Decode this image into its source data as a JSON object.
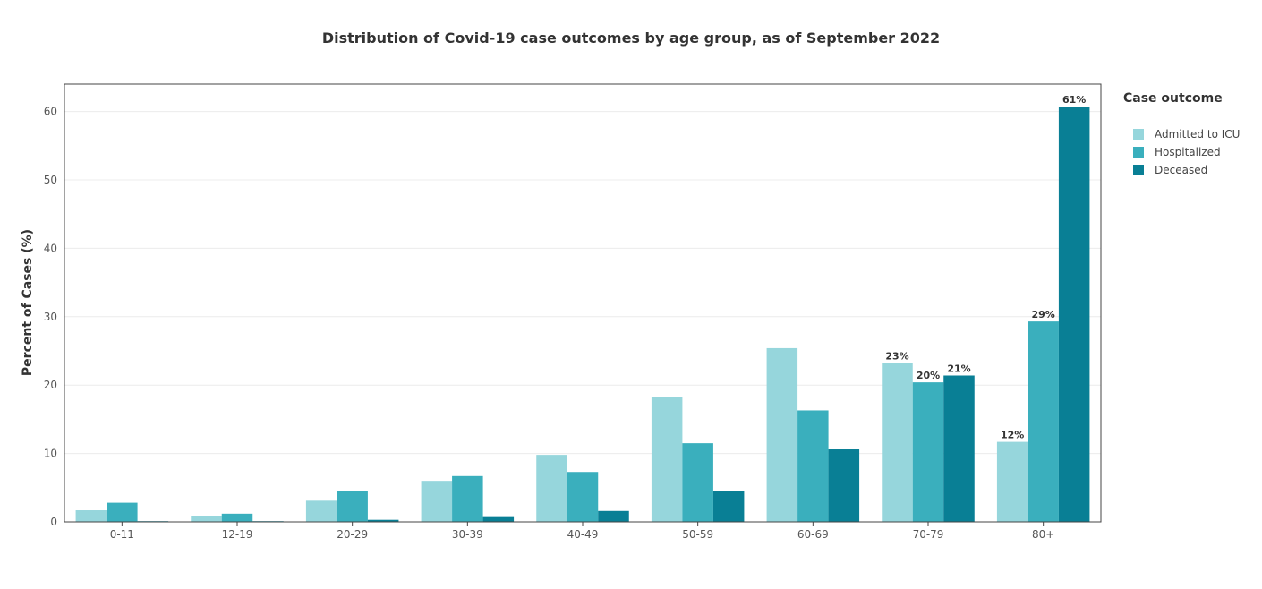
{
  "chart_data": {
    "type": "bar",
    "title": "Distribution of Covid-19 case outcomes by age group, as of September 2022",
    "xlabel": "",
    "ylabel": "Percent of Cases (%)",
    "ylim": [
      0,
      64
    ],
    "yticks": [
      0,
      10,
      20,
      30,
      40,
      50,
      60
    ],
    "grid": true,
    "legend_title": "Case outcome",
    "legend_position": "top-right",
    "categories": [
      "0-11",
      "12-19",
      "20-29",
      "30-39",
      "40-49",
      "50-59",
      "60-69",
      "70-79",
      "80+"
    ],
    "series": [
      {
        "name": "Admitted to ICU",
        "color": "#96d6dc",
        "values": [
          1.7,
          0.8,
          3.1,
          6.0,
          9.8,
          18.3,
          25.4,
          23.2,
          11.7
        ],
        "labels": [
          "",
          "",
          "",
          "",
          "",
          "",
          "",
          "23%",
          "12%"
        ]
      },
      {
        "name": "Hospitalized",
        "color": "#3aafbd",
        "values": [
          2.8,
          1.2,
          4.5,
          6.7,
          7.3,
          11.5,
          16.3,
          20.4,
          29.3
        ],
        "labels": [
          "",
          "",
          "",
          "",
          "",
          "",
          "",
          "20%",
          "29%"
        ]
      },
      {
        "name": "Deceased",
        "color": "#097f95",
        "values": [
          0.1,
          0.1,
          0.3,
          0.7,
          1.6,
          4.5,
          10.6,
          21.4,
          60.7
        ],
        "labels": [
          "",
          "",
          "",
          "",
          "",
          "",
          "",
          "21%",
          "61%"
        ]
      }
    ]
  }
}
